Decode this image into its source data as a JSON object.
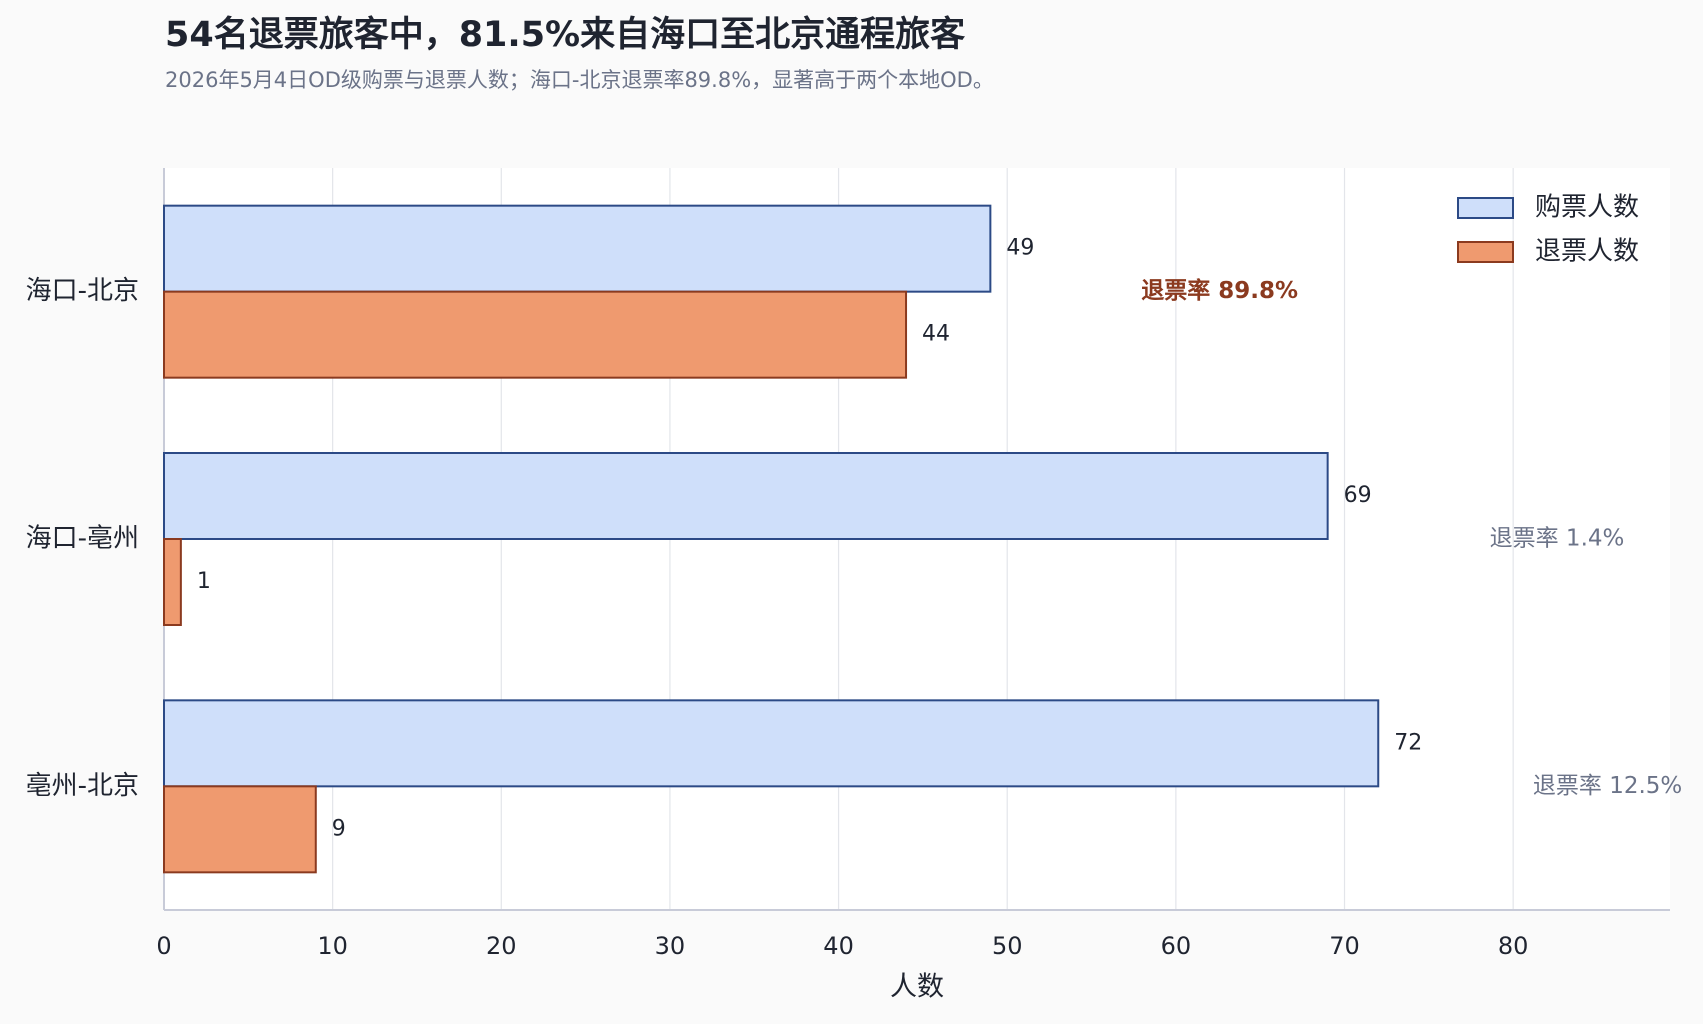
{
  "chart_data": {
    "type": "barh",
    "title": "54名退票旅客中，81.5%来自海口至北京通程旅客",
    "subtitle": "2026年5月4日OD级购票与退票人数；海口-北京退票率89.8%，显著高于两个本地OD。",
    "categories": [
      "海口-北京",
      "海口-亳州",
      "亳州-北京"
    ],
    "series": [
      {
        "name": "购票人数",
        "color": "#cfdffa",
        "edgecolor": "#2c4a86",
        "values": [
          49,
          69,
          72
        ]
      },
      {
        "name": "退票人数",
        "color": "#ef9a6f",
        "edgecolor": "#8b3a1f",
        "values": [
          44,
          1,
          9
        ]
      }
    ],
    "annotations": [
      "退票率 89.8%",
      "退票率 1.4%",
      "退票率 12.5%"
    ],
    "xlabel": "人数",
    "xlim": [
      0,
      89.3
    ],
    "xticks": [
      0,
      10,
      20,
      30,
      40,
      50,
      60,
      70,
      80
    ],
    "grid": true,
    "legend": "upper right"
  }
}
